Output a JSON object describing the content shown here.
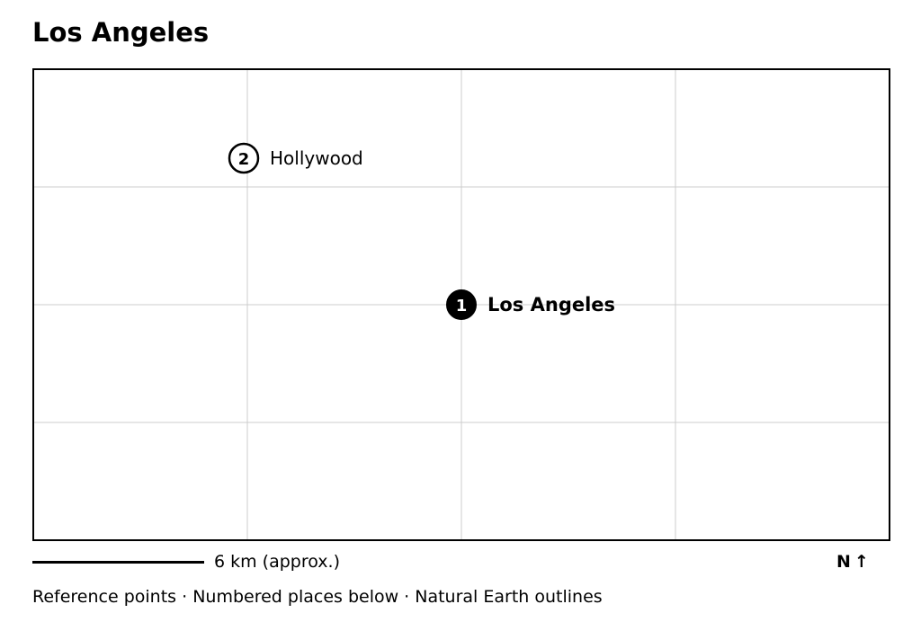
{
  "title": "Los Angeles",
  "map": {
    "grid": true,
    "places": [
      {
        "number": "1",
        "name": "Los Angeles",
        "primary": true
      },
      {
        "number": "2",
        "name": "Hollywood",
        "primary": false
      }
    ]
  },
  "scale": {
    "label": "6 km (approx.)"
  },
  "north": {
    "label": "N",
    "arrow": "↑",
    "icon": "north-arrow-icon"
  },
  "caption": "Reference points · Numbered places below · Natural Earth outlines",
  "colors": {
    "frame": "#000000",
    "grid": "#cccccc",
    "primary_marker_fill": "#000000",
    "secondary_marker_fill": "#ffffff"
  }
}
